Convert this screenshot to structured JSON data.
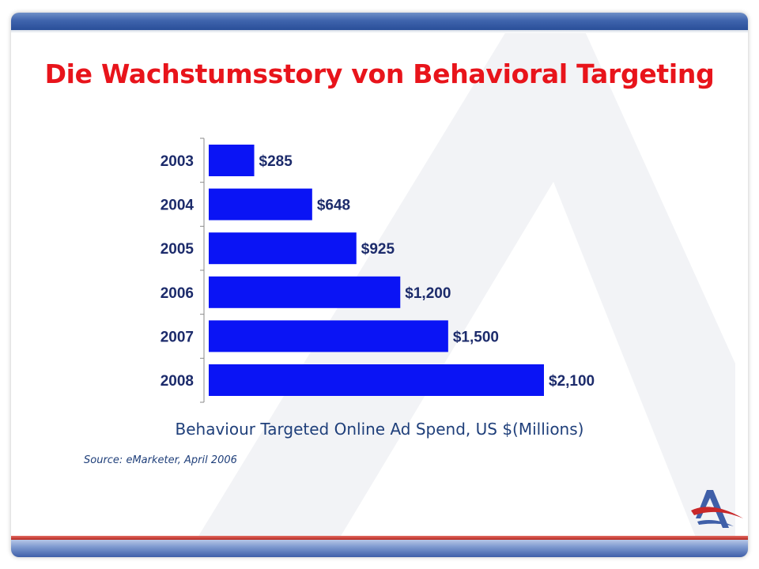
{
  "slide": {
    "title": "Die Wachstumsstory von Behavioral Targeting",
    "caption": "Behaviour Targeted Online Ad Spend, US $(Millions)",
    "source": "Source: eMarketer, April 2006"
  },
  "colors": {
    "title": "#e8141b",
    "bar": "#0a14f5",
    "caption": "#1f3f7a",
    "band_blue": "#2a4f99",
    "band_red": "#b52a22"
  },
  "logo": {
    "icon": "company-logo-icon"
  },
  "chart_data": {
    "type": "bar",
    "orientation": "horizontal",
    "title": "Die Wachstumsstory von Behavioral Targeting",
    "xlabel": "Behaviour Targeted Online Ad Spend, US $(Millions)",
    "ylabel": "",
    "categories": [
      "2003",
      "2004",
      "2005",
      "2006",
      "2007",
      "2008"
    ],
    "values": [
      285,
      648,
      925,
      1200,
      1500,
      2100
    ],
    "data_labels": [
      "$285",
      "$648",
      "$925",
      "$1,200",
      "$1,500",
      "$2,100"
    ],
    "xlim": [
      0,
      2100
    ],
    "grid": false,
    "legend": "none",
    "source": "Source: eMarketer, April 2006"
  }
}
